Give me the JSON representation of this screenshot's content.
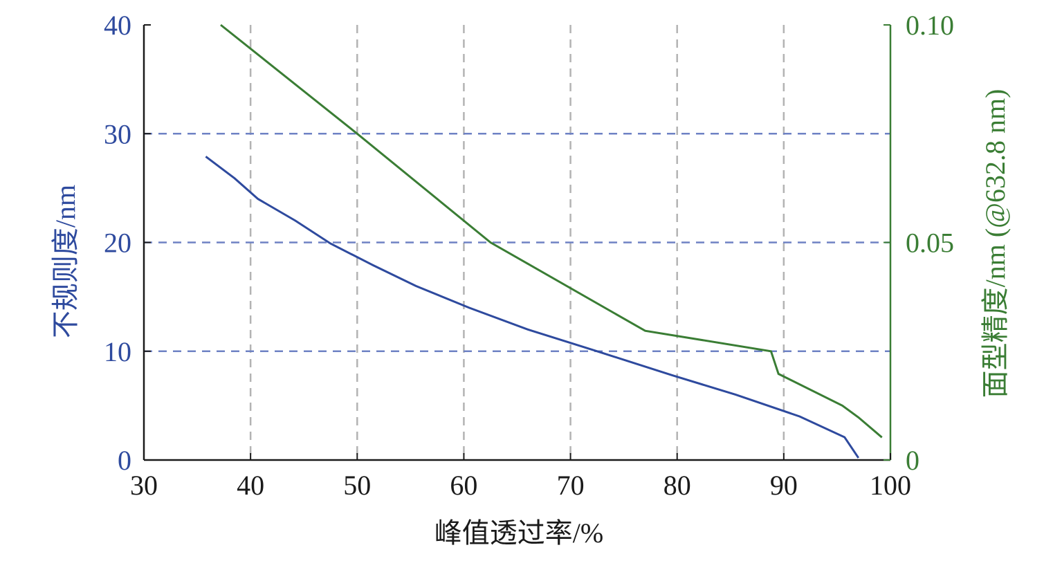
{
  "chart_data": {
    "type": "line",
    "title": "",
    "xlabel": "峰值透过率/%",
    "ylabel_left": "不规则度/nm",
    "ylabel_right": "面型精度/nm (@632.8 nm)",
    "xlim": [
      30,
      100
    ],
    "ylim_left": [
      0,
      40
    ],
    "ylim_right": [
      0,
      0.1
    ],
    "x_ticks": [
      "30",
      "40",
      "50",
      "60",
      "70",
      "80",
      "90",
      "100"
    ],
    "y_left_ticks": [
      "0",
      "10",
      "20",
      "30",
      "40"
    ],
    "y_right_ticks": [
      "0",
      "0.05",
      "0.10"
    ],
    "grid": true,
    "legend": "none",
    "colors": {
      "left_axis": "#2e4a9e",
      "right_axis": "#3a7d34",
      "grid_vertical": "#b3b3b3",
      "grid_horizontal": "#6e82c4"
    },
    "series": [
      {
        "axis": "left",
        "color": "#2e4a9e",
        "x": [
          35.8,
          38.5,
          40.7,
          44.2,
          47.5,
          51.5,
          55.5,
          60.5,
          66.0,
          72.5,
          79.5,
          85.5,
          91.5,
          95.7,
          97.0
        ],
        "y": [
          27.9,
          25.9,
          24.0,
          22.0,
          19.9,
          17.9,
          16.0,
          14.0,
          12.0,
          10.0,
          7.8,
          6.0,
          4.0,
          2.1,
          0.2
        ]
      },
      {
        "axis": "right",
        "color": "#3a7d34",
        "x": [
          37.2,
          50.0,
          62.5,
          77.0,
          88.8,
          89.5,
          95.5,
          97.0,
          99.2
        ],
        "y": [
          0.1,
          0.075,
          0.05,
          0.0297,
          0.025,
          0.0198,
          0.0125,
          0.0098,
          0.0052
        ]
      }
    ]
  }
}
